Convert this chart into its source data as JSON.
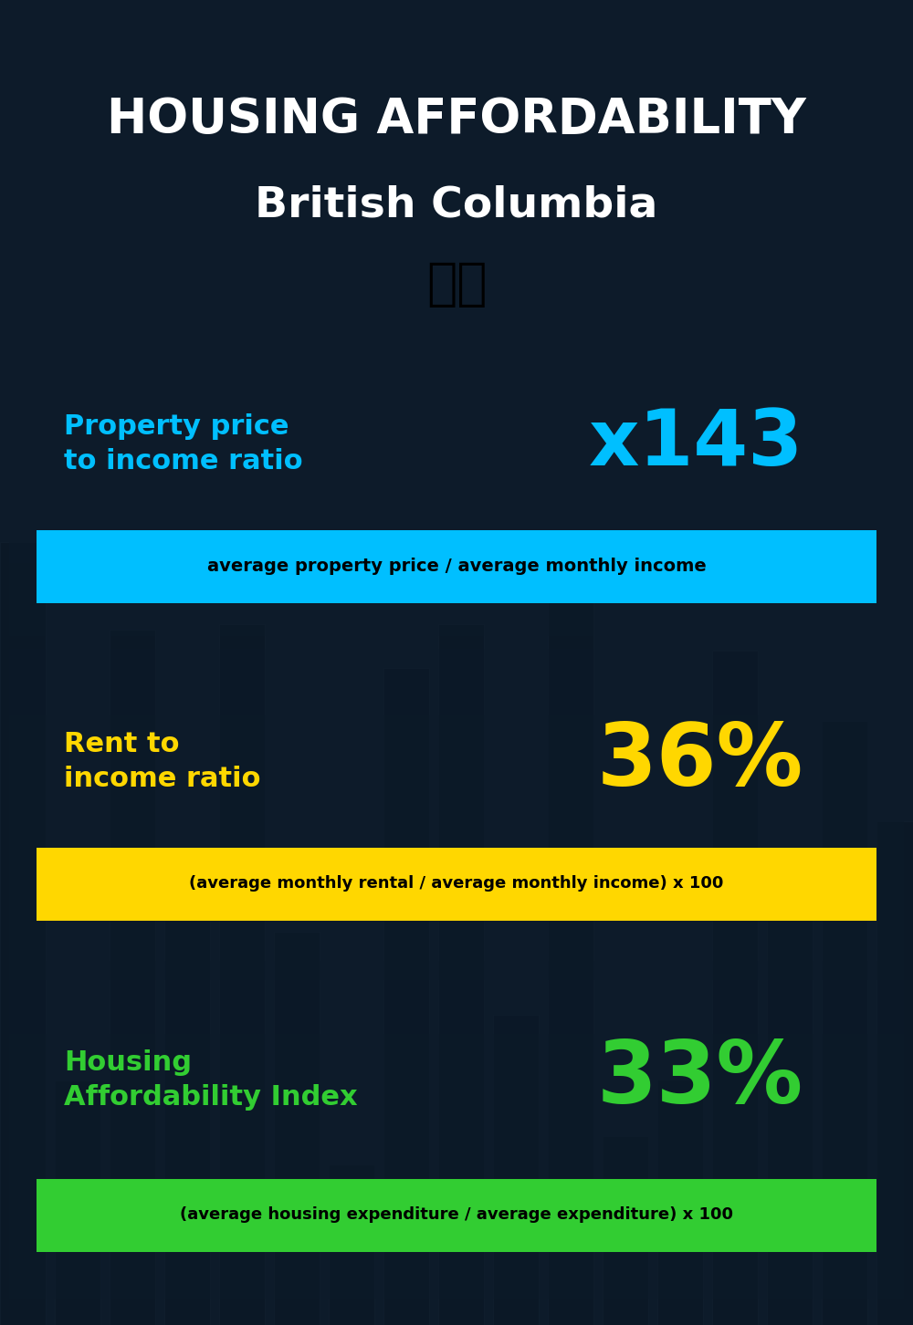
{
  "title_line1": "HOUSING AFFORDABILITY",
  "title_line2": "British Columbia",
  "bg_color": "#0d1b2a",
  "section1_label": "Property price\nto income ratio",
  "section1_value": "x143",
  "section1_label_color": "#00bfff",
  "section1_value_color": "#00bfff",
  "section1_formula": "average property price / average monthly income",
  "section1_formula_bg": "#00bfff",
  "section2_label": "Rent to\nincome ratio",
  "section2_value": "36%",
  "section2_label_color": "#ffd700",
  "section2_value_color": "#ffd700",
  "section2_formula": "(average monthly rental / average monthly income) x 100",
  "section2_formula_bg": "#ffd700",
  "section3_label": "Housing\nAffordability Index",
  "section3_value": "33%",
  "section3_label_color": "#32cd32",
  "section3_value_color": "#32cd32",
  "section3_formula": "(average housing expenditure / average expenditure) x 100",
  "section3_formula_bg": "#32cd32",
  "title_color": "#ffffff",
  "subtitle_color": "#ffffff"
}
